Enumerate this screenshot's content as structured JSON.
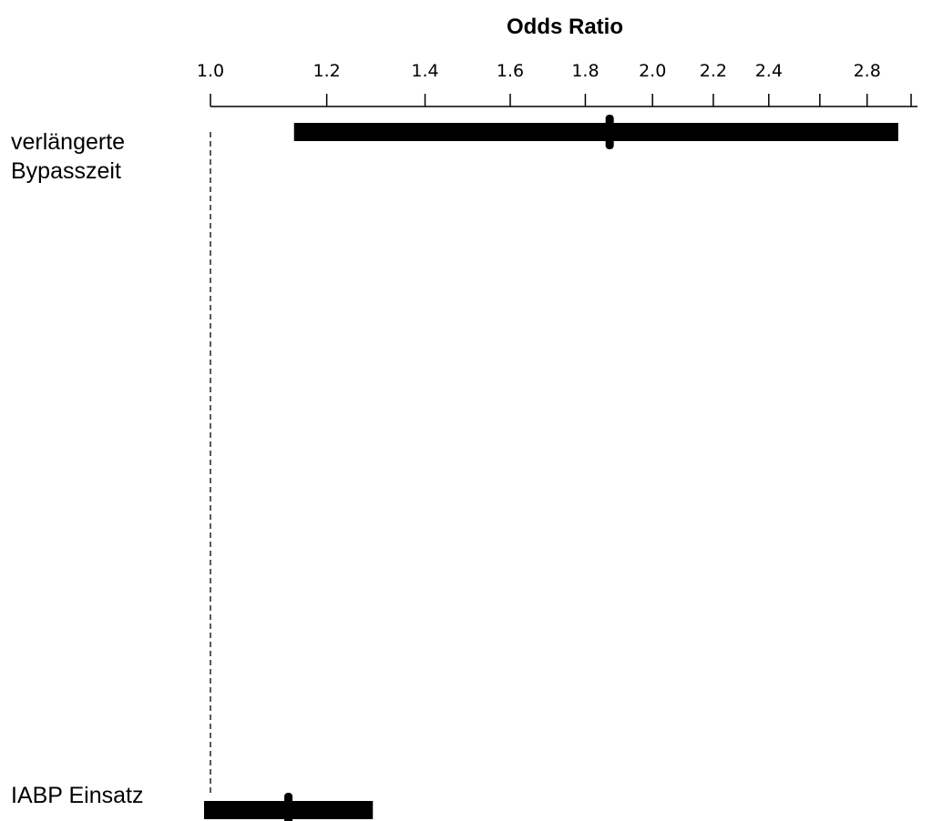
{
  "chart_data": {
    "type": "forest",
    "title": "",
    "xlabel": "Odds Ratio",
    "scale": "log",
    "xlim": [
      1.0,
      2.95
    ],
    "tick_labels": [
      "1.0",
      "1.2",
      "1.4",
      "1.6",
      "1.8",
      "2.0",
      "2.2",
      "2.4",
      "2.8"
    ],
    "minor_ticks": [
      2.6,
      3.0
    ],
    "reference_line": 1.0,
    "rows": [
      {
        "label_lines": [
          "verlängerte",
          "Bypasszeit"
        ],
        "or": 1.87,
        "ci_low": 1.14,
        "ci_high": 2.94
      },
      {
        "label_lines": [
          "IABP Einsatz"
        ],
        "or": 1.13,
        "ci_low": 0.99,
        "ci_high": 1.29
      }
    ],
    "colors": {
      "ink": "#000000",
      "background": "#ffffff"
    }
  }
}
